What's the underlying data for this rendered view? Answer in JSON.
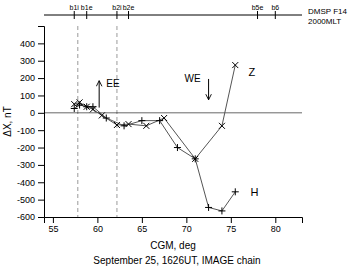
{
  "chart_data": {
    "type": "line",
    "title": "September 25, 1626UT, IMAGE chain",
    "xlabel": "CGM, deg",
    "ylabel": "ΔX, nT",
    "dmsp_label": [
      "DMSP F14",
      "2000MLT"
    ],
    "xlim": [
      54,
      83
    ],
    "ylim": [
      -600,
      500
    ],
    "xticks": [
      55,
      60,
      65,
      70,
      75,
      80
    ],
    "yticks": [
      -600,
      -500,
      -400,
      -300,
      -200,
      -100,
      0,
      100,
      200,
      300,
      400
    ],
    "background_color": "#ffffff",
    "series": [
      {
        "name": "Z",
        "color": "#555555",
        "marker": "x",
        "marker_color": "#000000",
        "label_x": 77.0,
        "label_y": 230,
        "x": [
          57.4,
          58.0,
          58.8,
          59.5,
          60.5,
          62.2,
          63.5,
          65.5,
          67.5,
          71.0,
          74.0,
          75.5
        ],
        "values": [
          50,
          60,
          35,
          20,
          -15,
          -70,
          -65,
          -75,
          -30,
          -265,
          -75,
          275
        ]
      },
      {
        "name": "H",
        "color": "#555555",
        "marker": "plus",
        "marker_color": "#000000",
        "label_x": 77.2,
        "label_y": -465,
        "x": [
          57.4,
          58.0,
          58.8,
          59.5,
          61.0,
          63.0,
          65.0,
          67.0,
          69.0,
          71.0,
          72.5,
          74.0,
          75.5
        ],
        "values": [
          25,
          45,
          35,
          35,
          -30,
          -75,
          -45,
          -45,
          -200,
          -265,
          -545,
          -565,
          -455
        ]
      }
    ],
    "hlines": [
      0
    ],
    "vlines": [
      57.8,
      62.2
    ],
    "annotations": [
      {
        "text": "EE",
        "x": 61.0,
        "y": 148,
        "arrow": {
          "x": 60.2,
          "y_start": 30,
          "y_end": 185
        }
      },
      {
        "text": "WE",
        "x": 69.8,
        "y": 180,
        "arrow": {
          "x": 72.5,
          "y_start": 195,
          "y_end": 75
        }
      }
    ],
    "top_markers": [
      {
        "x": 57.4,
        "label": "b1i"
      },
      {
        "x": 58.8,
        "label": "b1e"
      },
      {
        "x": 62.2,
        "label": "b2i"
      },
      {
        "x": 63.5,
        "label": "b2e"
      },
      {
        "x": 78.0,
        "label": "b5e"
      },
      {
        "x": 80.0,
        "label": "b6"
      }
    ]
  }
}
